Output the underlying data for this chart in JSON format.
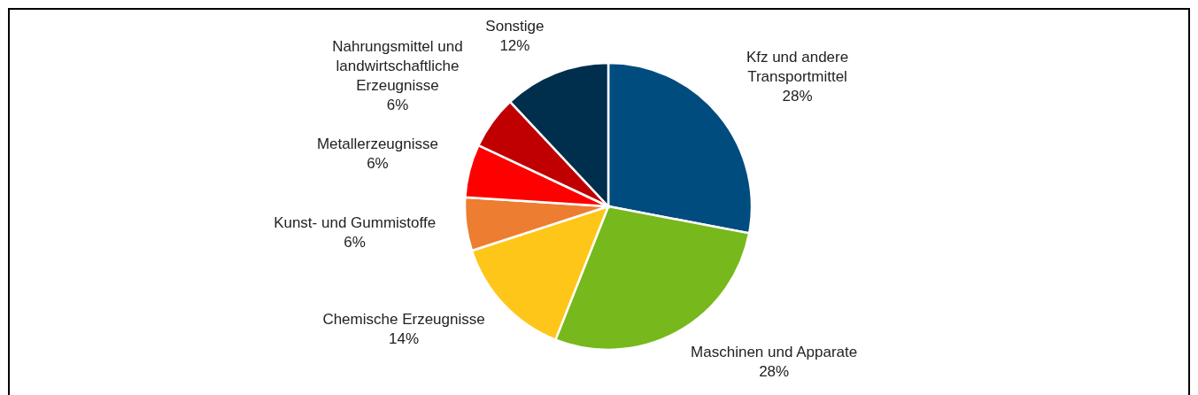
{
  "chart_data": {
    "type": "pie",
    "categories": [
      "Kfz und andere Transportmittel",
      "Maschinen und Apparate",
      "Chemische Erzeugnisse",
      "Kunst- und Gummistoffe",
      "Metallerzeugnisse",
      "Nahrungsmittel und landwirtschaftliche Erzeugnisse",
      "Sonstige"
    ],
    "values": [
      28,
      28,
      14,
      6,
      6,
      6,
      12
    ],
    "colors": [
      "#004c7f",
      "#77b81c",
      "#ffc61a",
      "#ed7d31",
      "#ff0000",
      "#c00000",
      "#002e4d"
    ],
    "value_labels": [
      "28%",
      "28%",
      "14%",
      "6%",
      "6%",
      "6%",
      "12%"
    ]
  }
}
